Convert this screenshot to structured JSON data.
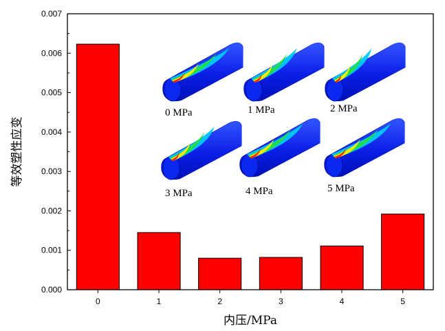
{
  "chart_data": {
    "type": "bar",
    "categories": [
      "0",
      "1",
      "2",
      "3",
      "4",
      "5"
    ],
    "values": [
      0.00623,
      0.00145,
      0.0008,
      0.00082,
      0.00111,
      0.00192
    ],
    "xlabel": "内压/MPa",
    "ylabel": "等效塑性应变",
    "ylim": [
      0,
      0.007
    ],
    "yticks": [
      "0.000",
      "0.001",
      "0.002",
      "0.003",
      "0.004",
      "0.005",
      "0.006",
      "0.007"
    ],
    "bar_color": "#ff0000",
    "grid": false,
    "inset_labels": [
      "0 MPa",
      "1 MPa",
      "2 MPa",
      "3 MPa",
      "4 MPa",
      "5 MPa"
    ],
    "inset_contour_colors": [
      "#0022ff",
      "#00c8ff",
      "#22dd44",
      "#ffee00",
      "#ff2200"
    ]
  }
}
